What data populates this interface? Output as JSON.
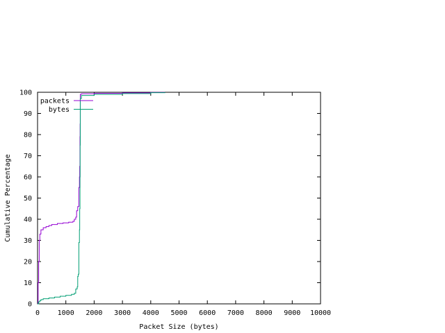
{
  "chart_data": {
    "type": "line",
    "title": "",
    "xlabel": "Packet Size (bytes)",
    "ylabel": "Cumulative Percentage",
    "xlim": [
      0,
      10000
    ],
    "ylim": [
      0,
      100
    ],
    "x_ticks": [
      0,
      1000,
      2000,
      3000,
      4000,
      5000,
      6000,
      7000,
      8000,
      9000,
      10000
    ],
    "y_ticks": [
      0,
      10,
      20,
      30,
      40,
      50,
      60,
      70,
      80,
      90,
      100
    ],
    "grid": false,
    "legend_position": "top-left",
    "series": [
      {
        "name": "packets",
        "color": "#9400d3",
        "points": [
          [
            0,
            0
          ],
          [
            20,
            10
          ],
          [
            40,
            20
          ],
          [
            60,
            30
          ],
          [
            80,
            33
          ],
          [
            120,
            35
          ],
          [
            200,
            36
          ],
          [
            300,
            36.5
          ],
          [
            400,
            37
          ],
          [
            500,
            37.5
          ],
          [
            700,
            38
          ],
          [
            900,
            38.3
          ],
          [
            1100,
            38.6
          ],
          [
            1250,
            39
          ],
          [
            1300,
            40
          ],
          [
            1350,
            41
          ],
          [
            1380,
            44
          ],
          [
            1420,
            46
          ],
          [
            1460,
            55
          ],
          [
            1480,
            60
          ],
          [
            1490,
            65
          ],
          [
            1500,
            79
          ],
          [
            1505,
            85
          ],
          [
            1510,
            99
          ],
          [
            1550,
            99.3
          ],
          [
            2000,
            99.5
          ],
          [
            3000,
            99.7
          ],
          [
            4000,
            99.9
          ],
          [
            4500,
            100
          ]
        ]
      },
      {
        "name": "bytes",
        "color": "#009e73",
        "points": [
          [
            0,
            0
          ],
          [
            40,
            1
          ],
          [
            80,
            1.5
          ],
          [
            120,
            2
          ],
          [
            200,
            2.4
          ],
          [
            400,
            2.8
          ],
          [
            600,
            3.2
          ],
          [
            800,
            3.6
          ],
          [
            1000,
            4
          ],
          [
            1200,
            4.5
          ],
          [
            1300,
            5
          ],
          [
            1350,
            7
          ],
          [
            1400,
            8
          ],
          [
            1420,
            13
          ],
          [
            1440,
            14
          ],
          [
            1460,
            29
          ],
          [
            1480,
            35
          ],
          [
            1490,
            45
          ],
          [
            1500,
            60
          ],
          [
            1505,
            75
          ],
          [
            1510,
            97
          ],
          [
            1550,
            98.5
          ],
          [
            2000,
            99
          ],
          [
            3000,
            99.4
          ],
          [
            4000,
            99.8
          ],
          [
            4500,
            100
          ]
        ]
      }
    ]
  }
}
